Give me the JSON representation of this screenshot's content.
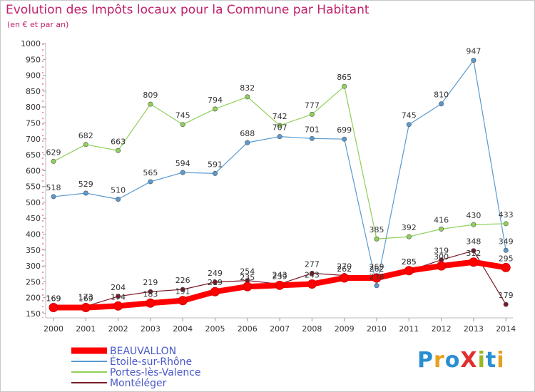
{
  "header": {
    "title": "Evolution des Impôts locaux pour la Commune par Habitant",
    "subtitle": "(en € et par an)"
  },
  "logo": {
    "text": "ProXiti",
    "colors": [
      "#2a8fd0",
      "#e8a020",
      "#2a8fd0",
      "#e03030",
      "#9ab820",
      "#2a8fd0",
      "#e8a020"
    ]
  },
  "chart_data": {
    "type": "line",
    "x": [
      "2000",
      "2001",
      "2002",
      "2003",
      "2004",
      "2005",
      "2006",
      "2007",
      "2008",
      "2009",
      "2010",
      "2011",
      "2012",
      "2013",
      "2014"
    ],
    "ylim": [
      150,
      1000
    ],
    "yticks": [
      150,
      200,
      250,
      300,
      350,
      400,
      450,
      500,
      550,
      600,
      650,
      700,
      750,
      800,
      850,
      900,
      950,
      1000
    ],
    "grid": false,
    "legend_position": "bottom-left",
    "series": [
      {
        "name": "Étoile-sur-Rhône",
        "color": "#5a9ad0",
        "values": [
          518,
          529,
          510,
          565,
          594,
          591,
          688,
          707,
          701,
          699,
          238,
          745,
          810,
          947,
          349
        ],
        "labels": [
          "518",
          "529",
          "510",
          "565",
          "594",
          "591",
          "688",
          "707",
          "701",
          "699",
          "238",
          "745",
          "810",
          "947",
          "349"
        ]
      },
      {
        "name": "Portes-lès-Valence",
        "color": "#8fd05a",
        "values": [
          629,
          682,
          663,
          809,
          745,
          794,
          832,
          742,
          777,
          865,
          385,
          392,
          416,
          430,
          433
        ],
        "labels": [
          "629",
          "682",
          "663",
          "809",
          "745",
          "794",
          "832",
          "742",
          "777",
          "865",
          "385",
          "392",
          "416",
          "430",
          "433"
        ]
      },
      {
        "name": "Montéléger",
        "color": "#7a1a28",
        "values": [
          169,
          173,
          204,
          219,
          226,
          249,
          254,
          243,
          277,
          270,
          269,
          285,
          319,
          348,
          179
        ],
        "labels": [
          "169",
          "173",
          "204",
          "219",
          "226",
          "249",
          "254",
          "243",
          "277",
          "270",
          "269",
          "285",
          "319",
          "348",
          "179"
        ]
      },
      {
        "name": "BEAUVALLON",
        "color": "#ff0000",
        "values": [
          169,
          169,
          174,
          183,
          191,
          219,
          235,
          239,
          243,
          262,
          262,
          285,
          300,
          312,
          295
        ],
        "labels": [
          "169",
          "169",
          "174",
          "183",
          "191",
          "219",
          "235",
          "239",
          "243",
          "262",
          "262",
          "285",
          "300",
          "312",
          "295"
        ]
      }
    ]
  }
}
